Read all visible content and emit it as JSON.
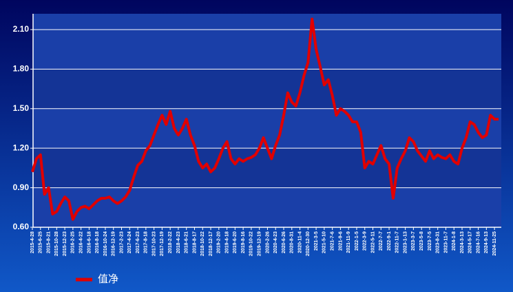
{
  "chart_data": {
    "type": "line",
    "categories": [
      "2015-4-28",
      null,
      "2015-6-25",
      null,
      "2015-8-21",
      null,
      "2015-10-28",
      null,
      "2015-12-23",
      null,
      "2016-2-25",
      null,
      "2016-4-22",
      null,
      "2016-6-18",
      null,
      "2016-8-18",
      null,
      "2016-10-24",
      null,
      "2016-12-19",
      null,
      "2017-2-23",
      null,
      "2017-4-24",
      null,
      "2017-6-23",
      null,
      "2017-8-18",
      null,
      "2017-10-23",
      null,
      "2017-12-19",
      null,
      "2018-2-22",
      null,
      "2018-4-23",
      null,
      "2018-6-21",
      null,
      "2018-8-17",
      null,
      "2018-10-22",
      null,
      "2018-12-17",
      null,
      "2019-2-20",
      null,
      "2019-4-18",
      null,
      "2019-6-20",
      null,
      "2019-8-16",
      null,
      "2019-10-22",
      null,
      "2019-12-19",
      null,
      "2020-2-26",
      null,
      "2020-4-23",
      null,
      "2020-6-26",
      null,
      "2020-8-31",
      null,
      "2020-11-4",
      null,
      "2020-12-30",
      null,
      "2021-3-5",
      null,
      "2021-5-10",
      null,
      "2021-7-6",
      null,
      "2021-9-6",
      null,
      "2021-11-9",
      null,
      "2022-1-5",
      null,
      "2022-3-9",
      null,
      "2022-5-11",
      null,
      "2022-7-7",
      null,
      "2022-9-1",
      null,
      "2022-11-7",
      null,
      "2023-1-13",
      null,
      "2023-3-7",
      null,
      "2023-5-8",
      null,
      "2023-7-5",
      null,
      "2023-8-31",
      null,
      "2023-11-7",
      null,
      "2024-1-8",
      null,
      "2024-3-13",
      null,
      "2024-5-17",
      null,
      "2024-7-16",
      null,
      "2024-9-13",
      null,
      "2024-11-25",
      null
    ],
    "series": [
      {
        "name": "值净",
        "color": "#e00000",
        "values": [
          1.02,
          1.12,
          1.15,
          0.85,
          0.9,
          0.7,
          0.72,
          0.78,
          0.83,
          0.8,
          0.66,
          0.72,
          0.75,
          0.76,
          0.74,
          0.77,
          0.8,
          0.82,
          0.82,
          0.83,
          0.8,
          0.78,
          0.8,
          0.83,
          0.88,
          0.98,
          1.07,
          1.1,
          1.18,
          1.22,
          1.3,
          1.38,
          1.45,
          1.38,
          1.48,
          1.35,
          1.3,
          1.35,
          1.42,
          1.3,
          1.22,
          1.1,
          1.05,
          1.08,
          1.02,
          1.05,
          1.12,
          1.2,
          1.25,
          1.12,
          1.08,
          1.12,
          1.1,
          1.12,
          1.13,
          1.15,
          1.2,
          1.28,
          1.2,
          1.12,
          1.22,
          1.3,
          1.45,
          1.62,
          1.55,
          1.52,
          1.62,
          1.75,
          1.85,
          2.18,
          1.95,
          1.82,
          1.68,
          1.72,
          1.6,
          1.45,
          1.5,
          1.48,
          1.45,
          1.4,
          1.4,
          1.32,
          1.05,
          1.1,
          1.08,
          1.15,
          1.22,
          1.12,
          1.08,
          0.82,
          1.05,
          1.12,
          1.18,
          1.28,
          1.25,
          1.18,
          1.14,
          1.1,
          1.18,
          1.12,
          1.15,
          1.13,
          1.12,
          1.15,
          1.1,
          1.08,
          1.2,
          1.28,
          1.4,
          1.38,
          1.32,
          1.28,
          1.3,
          1.45,
          1.42,
          1.42
        ]
      }
    ],
    "ylim": [
      0.6,
      2.22
    ],
    "yticks": [
      {
        "value": 0.6,
        "label": "0.60"
      },
      {
        "value": 0.9,
        "label": "0.90"
      },
      {
        "value": 1.2,
        "label": "1.20"
      },
      {
        "value": 1.5,
        "label": "1.50"
      },
      {
        "value": 1.8,
        "label": "1.80"
      },
      {
        "value": 2.1,
        "label": "2.10"
      }
    ],
    "grid": true,
    "legend": "bottom-left"
  }
}
